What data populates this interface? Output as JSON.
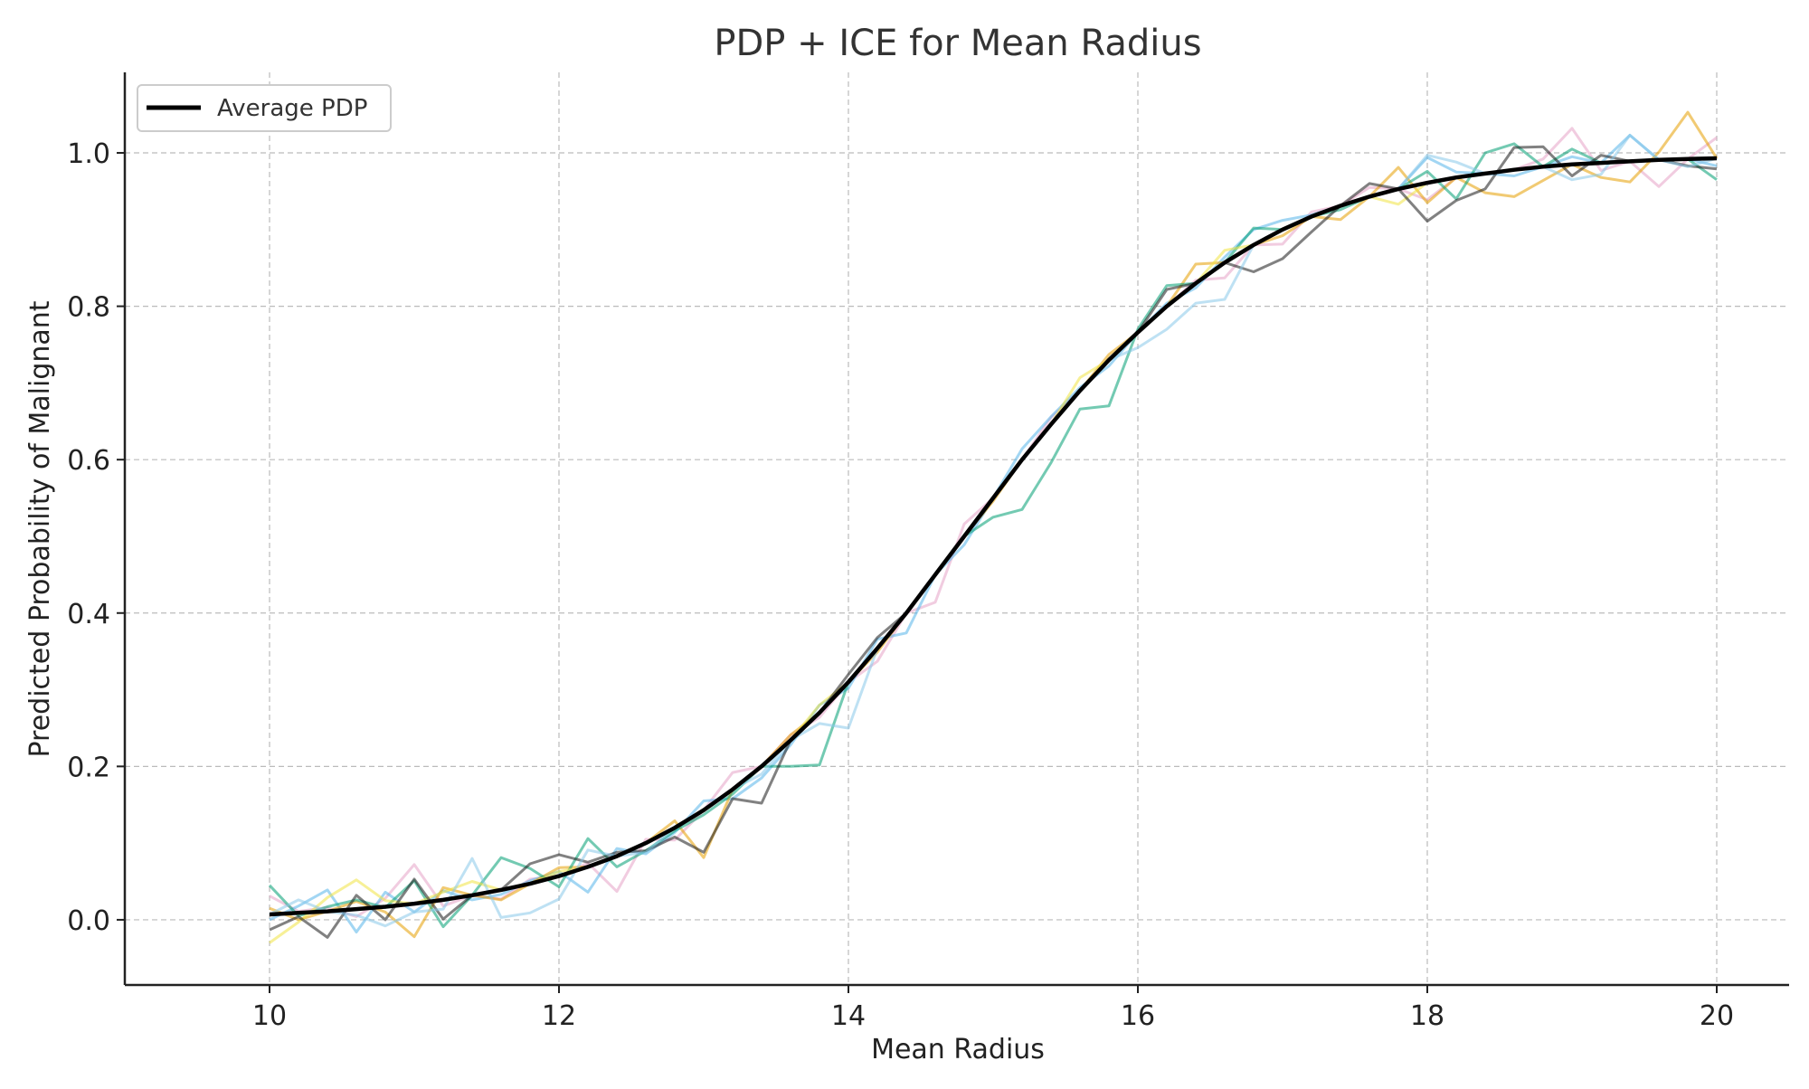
{
  "chart_data": {
    "type": "line",
    "title": "PDP + ICE for Mean Radius",
    "xlabel": "Mean Radius",
    "ylabel": "Predicted Probability of Malignant",
    "xlim": [
      9.0,
      20.5
    ],
    "ylim": [
      -0.085,
      1.105
    ],
    "xticks": [
      10,
      12,
      14,
      16,
      18,
      20
    ],
    "yticks": [
      0.0,
      0.2,
      0.4,
      0.6,
      0.8,
      1.0
    ],
    "xtick_labels": [
      "10",
      "12",
      "14",
      "16",
      "18",
      "20"
    ],
    "ytick_labels": [
      "0.0",
      "0.2",
      "0.4",
      "0.6",
      "0.8",
      "1.0"
    ],
    "grid": true,
    "legend": {
      "position": "top-left",
      "entries": [
        "Average PDP"
      ]
    },
    "pdp": {
      "name": "Average PDP",
      "color": "#000000",
      "x": [
        10.0,
        10.2,
        10.4,
        10.6,
        10.8,
        11.0,
        11.2,
        11.4,
        11.6,
        11.8,
        12.0,
        12.2,
        12.4,
        12.6,
        12.8,
        13.0,
        13.2,
        13.4,
        13.6,
        13.8,
        14.0,
        14.2,
        14.4,
        14.6,
        14.8,
        15.0,
        15.2,
        15.4,
        15.6,
        15.8,
        16.0,
        16.2,
        16.4,
        16.6,
        16.8,
        17.0,
        17.2,
        17.4,
        17.6,
        17.8,
        18.0,
        18.2,
        18.4,
        18.6,
        18.8,
        19.0,
        19.2,
        19.4,
        19.6,
        19.8,
        20.0
      ],
      "y": [
        0.007,
        0.009,
        0.011,
        0.014,
        0.017,
        0.021,
        0.026,
        0.032,
        0.039,
        0.047,
        0.057,
        0.069,
        0.083,
        0.1,
        0.12,
        0.143,
        0.17,
        0.2,
        0.234,
        0.27,
        0.31,
        0.354,
        0.4,
        0.45,
        0.5,
        0.55,
        0.6,
        0.646,
        0.69,
        0.73,
        0.766,
        0.8,
        0.83,
        0.857,
        0.88,
        0.9,
        0.917,
        0.931,
        0.943,
        0.953,
        0.961,
        0.968,
        0.973,
        0.978,
        0.982,
        0.985,
        0.987,
        0.989,
        0.991,
        0.992,
        0.993
      ]
    },
    "ice": {
      "x_start": 10.0,
      "x_step": 0.2,
      "series": [
        {
          "color": "#e6a3c6",
          "noise": [
            0.024,
            0.002,
            0.005,
            -0.01,
            0.011,
            0.051,
            -0.008,
            0.0,
            -0.012,
            0.006,
            0.0,
            0.005,
            -0.046,
            0.005,
            -0.016,
            0.0,
            0.022,
            0.0,
            0.007,
            -0.006,
            0.0,
            -0.017,
            0.0,
            -0.036,
            0.016,
            0.0,
            0.0,
            0.009,
            0.0,
            0.0,
            0.0,
            0.0,
            0.004,
            -0.02,
            0.0,
            -0.019,
            0.006,
            0.0,
            0.012,
            0.0,
            -0.022,
            0.0,
            0.0,
            0.0,
            0.01,
            0.047,
            -0.01,
            0.0,
            -0.035,
            0.0,
            0.027
          ]
        },
        {
          "color": "#56b4e9",
          "noise": [
            -0.007,
            0.009,
            0.028,
            -0.03,
            0.019,
            -0.011,
            0.012,
            -0.006,
            -0.006,
            0.004,
            0.006,
            -0.033,
            0.01,
            -0.014,
            -0.006,
            0.012,
            -0.012,
            -0.015,
            -0.006,
            0.01,
            -0.008,
            0.012,
            -0.026,
            0.0,
            -0.011,
            0.0,
            0.014,
            0.01,
            0.004,
            -0.008,
            0.0,
            0.004,
            -0.006,
            0.007,
            0.02,
            0.012,
            0.002,
            0.0,
            0.0,
            0.0,
            0.033,
            0.007,
            0.0,
            -0.008,
            0.0,
            0.01,
            0.0,
            0.034,
            0.0,
            0.0,
            -0.01
          ]
        },
        {
          "color": "#e69f00",
          "noise": [
            0.008,
            -0.009,
            0.0,
            0.01,
            -0.007,
            -0.043,
            0.016,
            0.0,
            -0.013,
            0.0,
            0.011,
            0.0,
            0.0,
            0.0,
            0.009,
            -0.062,
            0.0,
            0.0,
            0.007,
            0.0,
            0.0,
            -0.005,
            0.0,
            0.0,
            0.0,
            -0.004,
            0.0,
            0.0,
            0.0,
            0.007,
            0.0,
            0.0,
            0.025,
            0.0,
            0.0,
            -0.008,
            0.0,
            -0.018,
            0.0,
            0.028,
            -0.026,
            0.0,
            -0.025,
            -0.035,
            -0.018,
            0.0,
            -0.019,
            -0.027,
            0.01,
            0.061,
            0.0
          ]
        },
        {
          "color": "#009e73",
          "noise": [
            0.038,
            -0.004,
            0.006,
            0.012,
            -0.001,
            0.03,
            -0.035,
            0.0,
            0.042,
            0.02,
            -0.014,
            0.037,
            -0.014,
            -0.01,
            -0.004,
            -0.006,
            -0.006,
            0.0,
            -0.034,
            -0.068,
            0.0,
            0.0,
            0.0,
            0.0,
            0.0,
            -0.025,
            -0.065,
            -0.05,
            -0.024,
            -0.06,
            0.004,
            0.027,
            0.0,
            0.0,
            0.022,
            0.0,
            0.0,
            -0.005,
            0.0,
            0.0,
            0.015,
            -0.028,
            0.027,
            0.034,
            0.0,
            0.02,
            0.0,
            0.0,
            0.0,
            0.0,
            -0.028
          ]
        },
        {
          "color": "#f0e442",
          "noise": [
            -0.037,
            -0.012,
            0.018,
            0.038,
            0.008,
            0.0,
            0.01,
            0.018,
            0.0,
            0.0,
            0.006,
            0.0,
            0.0,
            0.0,
            0.0,
            0.0,
            0.0,
            0.0,
            0.0,
            0.01,
            0.0,
            0.0,
            0.0,
            0.0,
            0.0,
            0.0,
            0.0,
            0.0,
            0.017,
            0.0,
            0.0,
            0.0,
            0.0,
            0.016,
            0.0,
            0.0,
            0.0,
            0.0,
            0.0,
            -0.02,
            0.0,
            0.0,
            0.0,
            0.0,
            0.0,
            0.0,
            0.0,
            0.0,
            0.0,
            0.0,
            0.0
          ]
        },
        {
          "color": "#1a1a1a",
          "noise": [
            -0.02,
            -0.005,
            -0.034,
            0.018,
            -0.017,
            0.032,
            -0.025,
            0.0,
            0.0,
            0.026,
            0.028,
            0.006,
            0.005,
            -0.01,
            -0.012,
            -0.055,
            -0.012,
            -0.048,
            0.0,
            0.0,
            0.01,
            0.014,
            0.0,
            0.0,
            0.0,
            0.0,
            0.0,
            0.0,
            0.0,
            0.0,
            0.0,
            0.022,
            0.0,
            0.0,
            -0.035,
            -0.038,
            -0.02,
            0.0,
            0.017,
            0.0,
            -0.05,
            -0.03,
            -0.02,
            0.029,
            0.026,
            -0.015,
            0.01,
            0.0,
            0.0,
            -0.009,
            -0.014
          ]
        },
        {
          "color": "#88c8ea",
          "noise": [
            0.0,
            0.017,
            0.0,
            -0.008,
            -0.025,
            -0.011,
            -0.012,
            0.048,
            -0.036,
            -0.038,
            -0.03,
            0.022,
            0.0,
            -0.012,
            0.0,
            0.0,
            0.0,
            -0.01,
            0.0,
            -0.014,
            -0.06,
            0.0,
            0.0,
            0.0,
            0.0,
            0.0,
            0.0,
            0.0,
            0.0,
            0.0,
            -0.02,
            -0.03,
            -0.026,
            -0.048,
            0.0,
            0.0,
            0.0,
            0.0,
            0.0,
            0.0,
            0.036,
            0.02,
            0.0,
            0.0,
            0.0,
            -0.02,
            -0.015,
            0.034,
            0.0,
            -0.01,
            0.0
          ]
        }
      ]
    }
  }
}
